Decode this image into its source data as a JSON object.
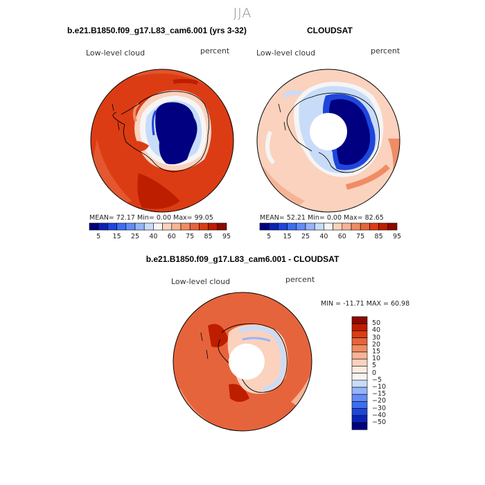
{
  "figure": {
    "season": "JJA"
  },
  "panel_model": {
    "title": "b.e21.B1850.f09_g17.L83_cam6.001 (yrs 3-32)",
    "variable": "Low-level cloud",
    "units": "percent",
    "stats": "MEAN=   72.17   Min=     0.00   Max=   99.05",
    "colorbar_ticks": [
      "5",
      "15",
      "25",
      "40",
      "60",
      "75",
      "85",
      "95"
    ]
  },
  "panel_obs": {
    "title": "CLOUDSAT",
    "variable": "Low-level cloud",
    "units": "percent",
    "stats": "MEAN=   52.21   Min=     0.00   Max=   82.65",
    "colorbar_ticks": [
      "5",
      "15",
      "25",
      "40",
      "60",
      "75",
      "85",
      "95"
    ]
  },
  "panel_diff": {
    "title": "b.e21.B1850.f09_g17.L83_cam6.001 - CLOUDSAT",
    "variable": "Low-level cloud",
    "units": "percent",
    "stats": "MIN = -11.71 MAX =   60.98",
    "colorbar_ticks": [
      "50",
      "40",
      "30",
      "20",
      "15",
      "10",
      "5",
      "0",
      "−5",
      "−10",
      "−15",
      "−20",
      "−30",
      "−40",
      "−50"
    ]
  },
  "colors": {
    "abs_scale": [
      "#000080",
      "#0a23b4",
      "#1e46dc",
      "#3c6ef0",
      "#648cf5",
      "#96b4fa",
      "#c8dcfa",
      "#f5f5f5",
      "#fad2be",
      "#f5b496",
      "#f08c64",
      "#e6643c",
      "#dc3c14",
      "#be1e00",
      "#8c0a00"
    ],
    "diff_scale": [
      "#8c0a00",
      "#be1e00",
      "#dc3c14",
      "#e6643c",
      "#f08c64",
      "#f5b496",
      "#fad2be",
      "#fcebe0",
      "#f5f5f5",
      "#c8dcfa",
      "#96b4fa",
      "#648cf5",
      "#3c6ef0",
      "#1e46dc",
      "#0a23b4",
      "#000080"
    ]
  }
}
